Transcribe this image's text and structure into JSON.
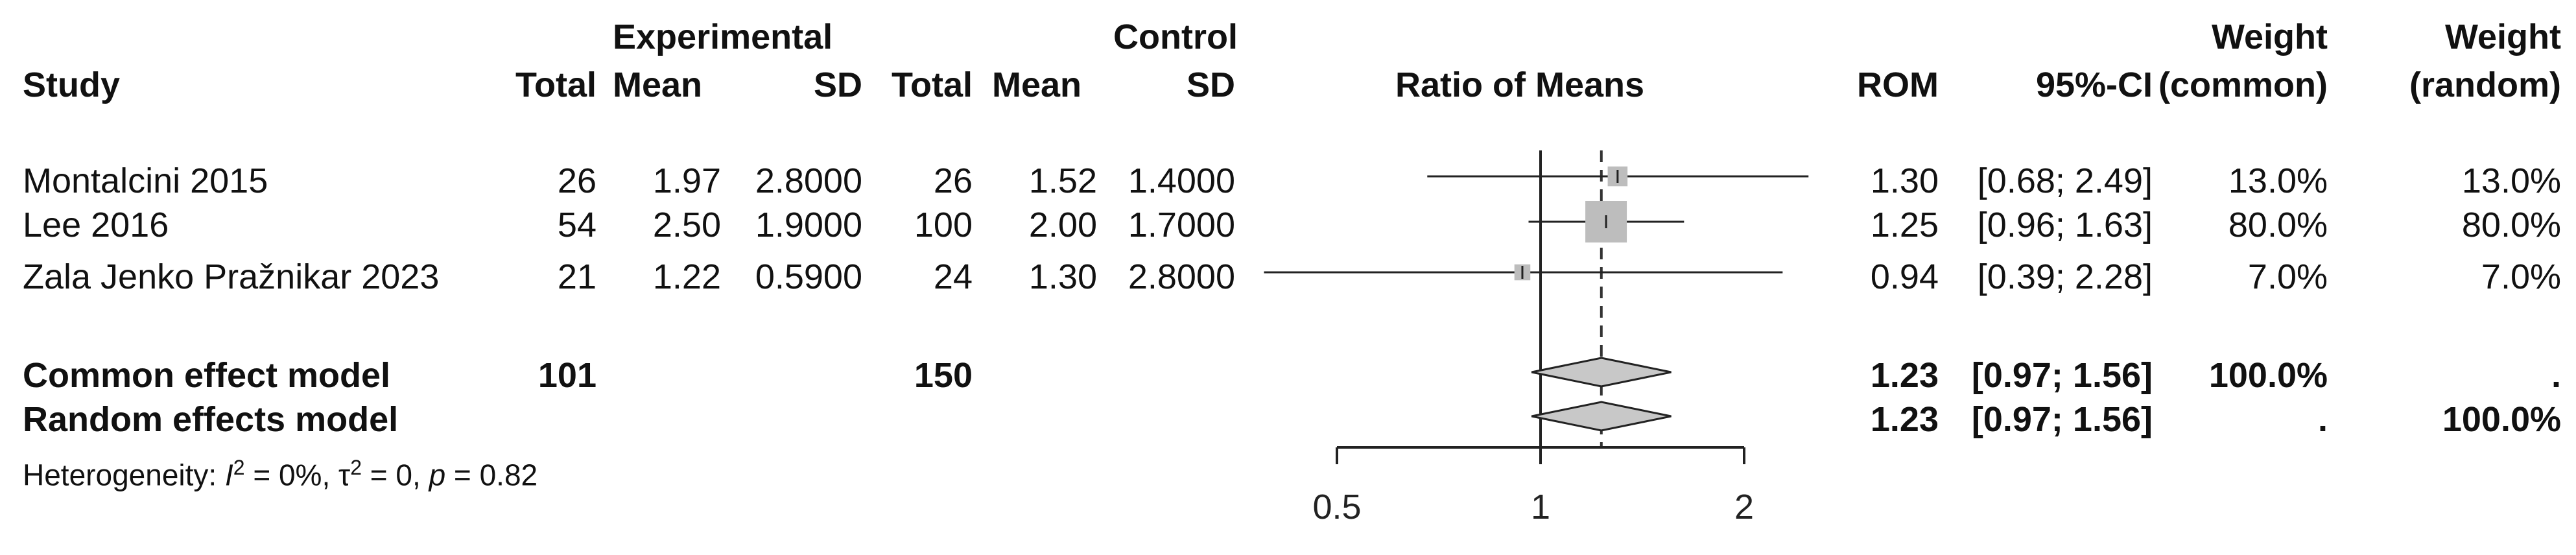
{
  "chart_data": {
    "type": "forest",
    "headers": {
      "study": "Study",
      "experimental": "Experimental",
      "control": "Control",
      "total": "Total",
      "mean": "Mean",
      "sd": "SD",
      "ratio_of_means": "Ratio of Means",
      "rom": "ROM",
      "ci": "95%-CI",
      "weight": "Weight",
      "weight_common": "(common)",
      "weight_random": "(random)"
    },
    "studies": [
      {
        "name": "Montalcini 2015",
        "exp_total": "26",
        "exp_mean": "1.97",
        "exp_sd": "2.8000",
        "ctl_total": "26",
        "ctl_mean": "1.52",
        "ctl_sd": "1.4000",
        "rom": 1.3,
        "lower": 0.68,
        "upper": 2.49,
        "rom_label": "1.30",
        "ci_label": "[0.68; 2.49]",
        "w_common": "13.0%",
        "w_random": "13.0%",
        "weight": 13.0
      },
      {
        "name": "Lee  2016",
        "exp_total": "54",
        "exp_mean": "2.50",
        "exp_sd": "1.9000",
        "ctl_total": "100",
        "ctl_mean": "2.00",
        "ctl_sd": "1.7000",
        "rom": 1.25,
        "lower": 0.96,
        "upper": 1.63,
        "rom_label": "1.25",
        "ci_label": "[0.96; 1.63]",
        "w_common": "80.0%",
        "w_random": "80.0%",
        "weight": 80.0
      },
      {
        "name": "Zala Jenko Pražnikar 2023",
        "exp_total": "21",
        "exp_mean": "1.22",
        "exp_sd": "0.5900",
        "ctl_total": "24",
        "ctl_mean": "1.30",
        "ctl_sd": "2.8000",
        "rom": 0.94,
        "lower": 0.39,
        "upper": 2.28,
        "rom_label": "0.94",
        "ci_label": "[0.39; 2.28]",
        "w_common": "7.0%",
        "w_random": "7.0%",
        "weight": 7.0
      }
    ],
    "models": [
      {
        "name": "Common effect model",
        "exp_total": "101",
        "ctl_total": "150",
        "rom": 1.23,
        "lower": 0.97,
        "upper": 1.56,
        "rom_label": "1.23",
        "ci_label": "[0.97; 1.56]",
        "w_common": "100.0%",
        "w_random": "."
      },
      {
        "name": "Random effects model",
        "exp_total": "",
        "ctl_total": "",
        "rom": 1.23,
        "lower": 0.97,
        "upper": 1.56,
        "rom_label": "1.23",
        "ci_label": "[0.97; 1.56]",
        "w_common": ".",
        "w_random": "100.0%"
      }
    ],
    "heterogeneity": {
      "prefix": "Heterogeneity: ",
      "i_symbol": "I",
      "i_value": " = 0%, ",
      "tau_symbol": "τ",
      "tau_value": " = 0, ",
      "p_symbol": "p",
      "p_value": " = 0.82"
    },
    "x_axis": {
      "scale": "log",
      "range": [
        0.5,
        2
      ],
      "ticks": [
        0.5,
        1,
        2
      ],
      "tick_labels": [
        "0.5",
        "1",
        "2"
      ],
      "reference_line": 1,
      "pooled_dashed_line": 1.23
    }
  }
}
